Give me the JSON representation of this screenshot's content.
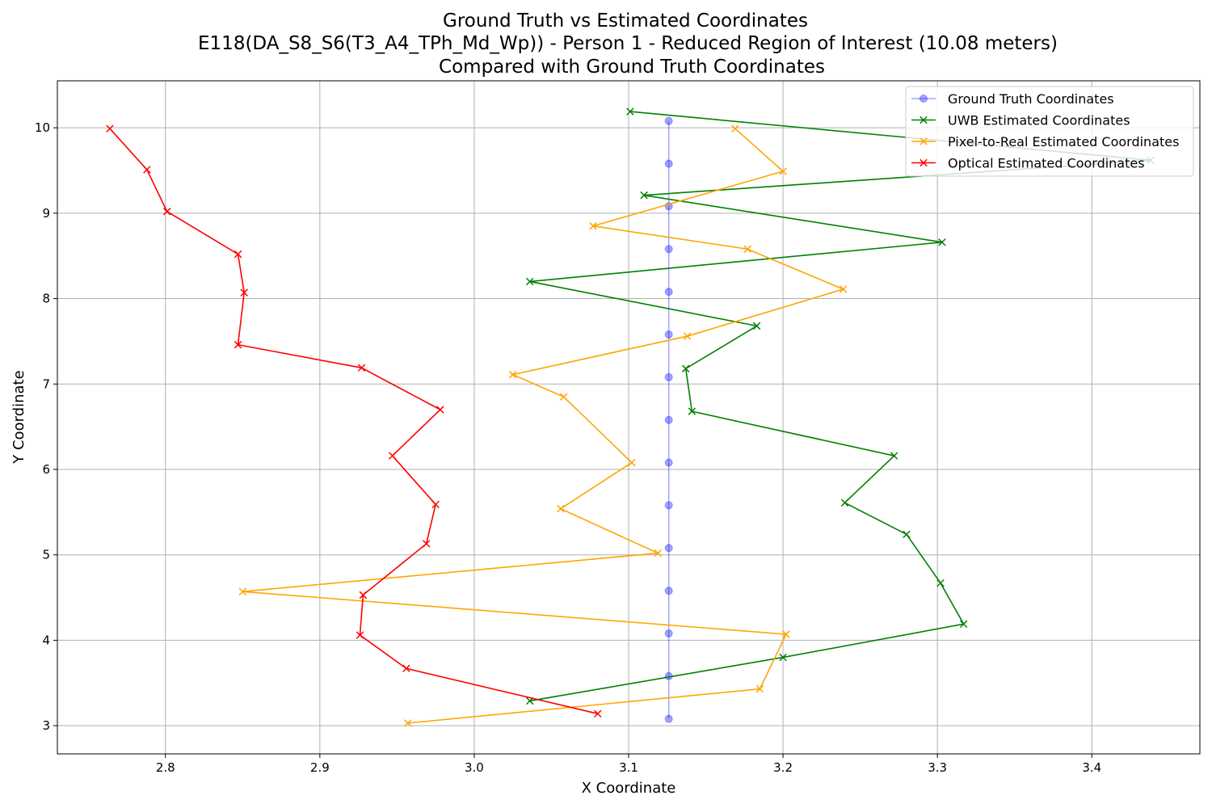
{
  "chart_data": {
    "type": "line",
    "title": [
      "Ground Truth vs Estimated Coordinates",
      "E118(DA_S8_S6(T3_A4_TPh_Md_Wp)) - Person 1 - Reduced Region of Interest (10.08 meters)",
      "Compared with Ground Truth Coordinates"
    ],
    "xlabel": "X Coordinate",
    "ylabel": "Y Coordinate",
    "xlim": [
      2.73,
      3.47
    ],
    "ylim": [
      2.67,
      10.55
    ],
    "xticks": [
      2.8,
      2.9,
      3.0,
      3.1,
      3.2,
      3.3,
      3.4
    ],
    "xtick_labels": [
      "2.8",
      "2.9",
      "3.0",
      "3.1",
      "3.2",
      "3.3",
      "3.4"
    ],
    "yticks": [
      3,
      4,
      5,
      6,
      7,
      8,
      9,
      10
    ],
    "ytick_labels": [
      "3",
      "4",
      "5",
      "6",
      "7",
      "8",
      "9",
      "10"
    ],
    "grid": true,
    "legend_position": "top-right",
    "series": [
      {
        "name": "Ground Truth Coordinates",
        "color": "#0000ff",
        "marker": "circle",
        "faded": true,
        "points": [
          [
            3.126,
            10.08
          ],
          [
            3.126,
            9.58
          ],
          [
            3.126,
            9.08
          ],
          [
            3.126,
            8.58
          ],
          [
            3.126,
            8.08
          ],
          [
            3.126,
            7.58
          ],
          [
            3.126,
            7.08
          ],
          [
            3.126,
            6.58
          ],
          [
            3.126,
            6.08
          ],
          [
            3.126,
            5.58
          ],
          [
            3.126,
            5.08
          ],
          [
            3.126,
            4.58
          ],
          [
            3.126,
            4.08
          ],
          [
            3.126,
            3.58
          ],
          [
            3.126,
            3.08
          ]
        ]
      },
      {
        "name": "UWB Estimated Coordinates",
        "color": "#008000",
        "marker": "x",
        "faded": false,
        "points": [
          [
            3.101,
            10.19
          ],
          [
            3.438,
            9.62
          ],
          [
            3.11,
            9.21
          ],
          [
            3.303,
            8.66
          ],
          [
            3.036,
            8.2
          ],
          [
            3.183,
            7.68
          ],
          [
            3.137,
            7.18
          ],
          [
            3.141,
            6.68
          ],
          [
            3.272,
            6.16
          ],
          [
            3.24,
            5.61
          ],
          [
            3.28,
            5.24
          ],
          [
            3.302,
            4.67
          ],
          [
            3.317,
            4.19
          ],
          [
            3.2,
            3.8
          ],
          [
            3.036,
            3.29
          ]
        ]
      },
      {
        "name": "Pixel-to-Real Estimated Coordinates",
        "color": "#ffa500",
        "marker": "x",
        "faded": false,
        "points": [
          [
            3.169,
            9.99
          ],
          [
            3.2,
            9.49
          ],
          [
            3.077,
            8.85
          ],
          [
            3.177,
            8.58
          ],
          [
            3.239,
            8.11
          ],
          [
            3.138,
            7.56
          ],
          [
            3.025,
            7.11
          ],
          [
            3.058,
            6.85
          ],
          [
            3.102,
            6.08
          ],
          [
            3.056,
            5.54
          ],
          [
            3.119,
            5.02
          ],
          [
            2.85,
            4.57
          ],
          [
            3.202,
            4.07
          ],
          [
            3.185,
            3.43
          ],
          [
            2.957,
            3.03
          ]
        ]
      },
      {
        "name": "Optical Estimated Coordinates",
        "color": "#ff0000",
        "marker": "x",
        "faded": false,
        "points": [
          [
            2.764,
            9.99
          ],
          [
            2.788,
            9.51
          ],
          [
            2.801,
            9.02
          ],
          [
            2.847,
            8.52
          ],
          [
            2.851,
            8.07
          ],
          [
            2.847,
            7.46
          ],
          [
            2.927,
            7.19
          ],
          [
            2.978,
            6.7
          ],
          [
            2.947,
            6.16
          ],
          [
            2.975,
            5.59
          ],
          [
            2.969,
            5.13
          ],
          [
            2.928,
            4.53
          ],
          [
            2.926,
            4.06
          ],
          [
            2.956,
            3.67
          ],
          [
            3.08,
            3.14
          ]
        ]
      }
    ]
  }
}
